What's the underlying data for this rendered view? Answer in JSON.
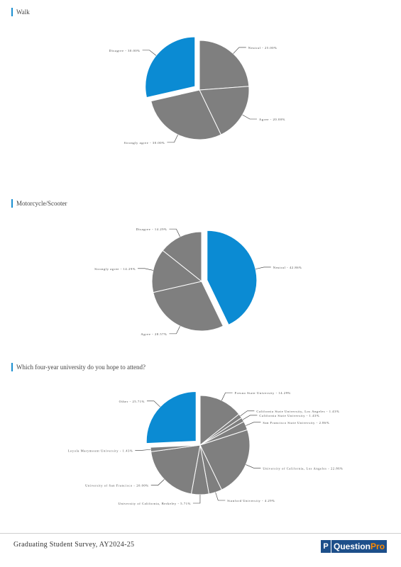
{
  "footer": {
    "survey_title": "Graduating Student Survey, AY2024-25",
    "logo_text": "Question",
    "logo_pro": "Pro",
    "logo_mark": "P"
  },
  "colors": {
    "highlight": "#0b8bd3",
    "slice": "#7f7f7f",
    "accent_bar": "#1a8fd1"
  },
  "chart_data": [
    {
      "type": "pie",
      "title": "Walk",
      "slices": [
        {
          "label": "Neutral - 25.00%",
          "value": 25.0,
          "highlight": false
        },
        {
          "label": "Agree - 20.00%",
          "value": 20.0,
          "highlight": false
        },
        {
          "label": "Strongly agree - 30.00%",
          "value": 30.0,
          "highlight": false
        },
        {
          "label": "Disagree - 30.00%",
          "value": 30.0,
          "highlight": true
        }
      ]
    },
    {
      "type": "pie",
      "title": "Motorcycle/Scooter",
      "slices": [
        {
          "label": "Neutral - 42.86%",
          "value": 42.86,
          "highlight": true
        },
        {
          "label": "Agree - 28.57%",
          "value": 28.57,
          "highlight": false
        },
        {
          "label": "Strongly agree - 14.29%",
          "value": 14.29,
          "highlight": false
        },
        {
          "label": "Disagree - 14.29%",
          "value": 14.29,
          "highlight": false
        }
      ]
    },
    {
      "type": "pie",
      "title": "Which four-year university do you hope to attend?",
      "slices": [
        {
          "label": "Fresno State University - 14.29%",
          "value": 14.29,
          "highlight": false
        },
        {
          "label": "California State University, Los Angeles - 1.43%",
          "value": 1.43,
          "highlight": false
        },
        {
          "label": "California State University - 1.43%",
          "value": 1.43,
          "highlight": false
        },
        {
          "label": "San Francisco State University - 2.86%",
          "value": 2.86,
          "highlight": false
        },
        {
          "label": "University of California, Los Angeles - 22.86%",
          "value": 22.86,
          "highlight": false
        },
        {
          "label": "Stanford University - 4.29%",
          "value": 4.29,
          "highlight": false
        },
        {
          "label": "University of California, Berkeley - 5.71%",
          "value": 5.71,
          "highlight": false
        },
        {
          "label": "University of San Francisco - 20.00%",
          "value": 20.0,
          "highlight": false
        },
        {
          "label": "Loyola Marymount University - 1.43%",
          "value": 1.43,
          "highlight": false
        },
        {
          "label": "Other - 25.71%",
          "value": 25.71,
          "highlight": true
        }
      ]
    }
  ]
}
